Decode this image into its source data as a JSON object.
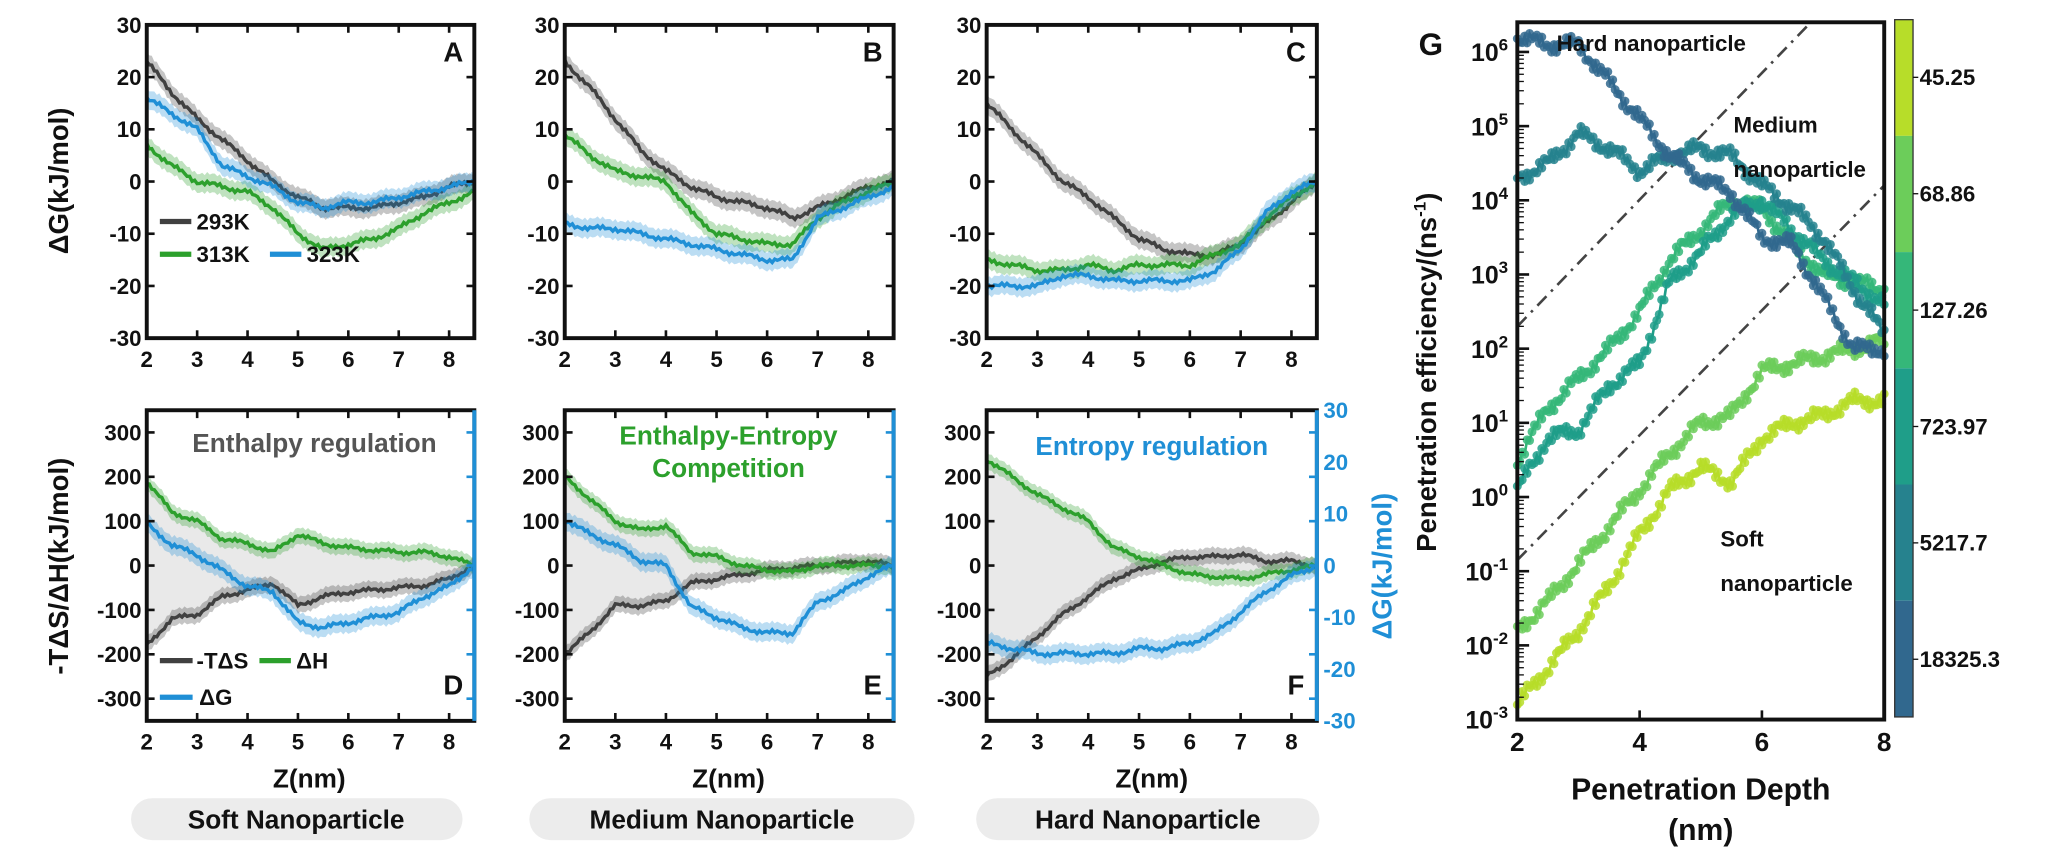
{
  "chart_data": [
    {
      "panel": "A",
      "type": "line",
      "letter": "A",
      "ylabel": "ΔG(kJ/mol)",
      "xlim": [
        2,
        8.5
      ],
      "ylim": [
        -30,
        30
      ],
      "xticks": [
        2,
        3,
        4,
        5,
        6,
        7,
        8
      ],
      "yticks": [
        30,
        20,
        10,
        0,
        -10,
        -20,
        -30
      ],
      "x": [
        2,
        2.5,
        3,
        3.5,
        4,
        4.5,
        5,
        5.5,
        6,
        6.5,
        7,
        7.5,
        8,
        8.5
      ],
      "series": [
        {
          "name": "293K",
          "color": "#404040",
          "values": [
            23,
            17,
            12,
            8,
            4,
            0,
            -3,
            -5,
            -5,
            -5,
            -4,
            -3,
            -1,
            0
          ]
        },
        {
          "name": "313K",
          "color": "#2ca02c",
          "values": [
            7,
            3,
            0,
            -1,
            -2,
            -5,
            -10,
            -13,
            -12,
            -11,
            -9,
            -6,
            -4,
            -2
          ]
        },
        {
          "name": "323K",
          "color": "#1f8fd6",
          "values": [
            16,
            13,
            10,
            3,
            1,
            -1,
            -4,
            -5,
            -4,
            -4,
            -3,
            -2,
            -1,
            0
          ]
        }
      ]
    },
    {
      "panel": "B",
      "type": "line",
      "letter": "B",
      "xlim": [
        2,
        8.5
      ],
      "ylim": [
        -30,
        30
      ],
      "xticks": [
        2,
        3,
        4,
        5,
        6,
        7,
        8
      ],
      "yticks": [
        30,
        20,
        10,
        0,
        -10,
        -20,
        -30
      ],
      "x": [
        2,
        2.5,
        3,
        3.5,
        4,
        4.5,
        5,
        5.5,
        6,
        6.5,
        7,
        7.5,
        8,
        8.5
      ],
      "series": [
        {
          "color": "#404040",
          "values": [
            23,
            18,
            12,
            6,
            2,
            -1,
            -3,
            -4,
            -5,
            -7,
            -5,
            -3,
            -1,
            0
          ]
        },
        {
          "color": "#2ca02c",
          "values": [
            9,
            5,
            2,
            1,
            0,
            -6,
            -10,
            -11,
            -12,
            -12,
            -7,
            -4,
            -2,
            0
          ]
        },
        {
          "color": "#1f8fd6",
          "values": [
            -8,
            -9,
            -9,
            -10,
            -11,
            -12,
            -13,
            -14,
            -15,
            -15,
            -7,
            -5,
            -3,
            -1
          ]
        }
      ]
    },
    {
      "panel": "C",
      "type": "line",
      "letter": "C",
      "xlim": [
        2,
        8.5
      ],
      "ylim": [
        -30,
        30
      ],
      "xticks": [
        2,
        3,
        4,
        5,
        6,
        7,
        8
      ],
      "yticks": [
        30,
        20,
        10,
        0,
        -10,
        -20,
        -30
      ],
      "x": [
        2,
        2.5,
        3,
        3.5,
        4,
        4.5,
        5,
        5.5,
        6,
        6.5,
        7,
        7.5,
        8,
        8.5
      ],
      "series": [
        {
          "color": "#404040",
          "values": [
            15,
            10,
            5,
            0,
            -3,
            -7,
            -11,
            -13,
            -14,
            -14,
            -12,
            -8,
            -4,
            0
          ]
        },
        {
          "color": "#2ca02c",
          "values": [
            -15,
            -16,
            -17,
            -17,
            -16,
            -17,
            -16,
            -16,
            -16,
            -14,
            -12,
            -7,
            -3,
            0
          ]
        },
        {
          "color": "#1f8fd6",
          "values": [
            -20,
            -20,
            -20,
            -18,
            -18,
            -19,
            -19,
            -19,
            -19,
            -17,
            -13,
            -6,
            -2,
            0
          ]
        }
      ]
    },
    {
      "panel": "D",
      "type": "line",
      "letter": "D",
      "ylabel": "-TΔS/ΔH(kJ/mol)",
      "xlabel": "Z(nm)",
      "annotation": "Enthalpy regulation",
      "annotation_color": "#555555",
      "xlim": [
        2,
        8.5
      ],
      "ylim": [
        -350,
        350
      ],
      "y2lim": [
        -30,
        30
      ],
      "xticks": [
        2,
        3,
        4,
        5,
        6,
        7,
        8
      ],
      "yticks": [
        300,
        200,
        100,
        0,
        -100,
        -200,
        -300
      ],
      "x": [
        2,
        2.5,
        3,
        3.5,
        4,
        4.5,
        5,
        5.5,
        6,
        6.5,
        7,
        7.5,
        8,
        8.5
      ],
      "series": [
        {
          "name": "-TΔS",
          "color": "#404040",
          "values": [
            -180,
            -120,
            -110,
            -70,
            -55,
            -40,
            -90,
            -70,
            -60,
            -55,
            -50,
            -45,
            -30,
            0
          ]
        },
        {
          "name": "ΔH",
          "color": "#2ca02c",
          "values": [
            190,
            120,
            100,
            60,
            50,
            30,
            70,
            50,
            40,
            35,
            30,
            30,
            20,
            0
          ]
        },
        {
          "name": "ΔG",
          "color": "#1f8fd6",
          "axis": "right",
          "values": [
            8,
            4,
            2,
            -1,
            -4,
            -5,
            -11,
            -12,
            -11,
            -10,
            -9,
            -6,
            -4,
            0
          ]
        }
      ]
    },
    {
      "panel": "E",
      "type": "line",
      "letter": "E",
      "xlabel": "Z(nm)",
      "annotation": [
        "Enthalpy-Entropy",
        "Competition"
      ],
      "annotation_color": "#2ca02c",
      "xlim": [
        2,
        8.5
      ],
      "ylim": [
        -350,
        350
      ],
      "y2lim": [
        -30,
        30
      ],
      "xticks": [
        2,
        3,
        4,
        5,
        6,
        7,
        8
      ],
      "yticks": [
        300,
        200,
        100,
        0,
        -100,
        -200,
        -300
      ],
      "x": [
        2,
        2.5,
        3,
        3.5,
        4,
        4.5,
        5,
        5.5,
        6,
        6.5,
        7,
        7.5,
        8,
        8.5
      ],
      "series": [
        {
          "color": "#404040",
          "values": [
            -200,
            -150,
            -90,
            -90,
            -80,
            -40,
            -30,
            -20,
            -10,
            -5,
            0,
            5,
            10,
            0
          ]
        },
        {
          "color": "#2ca02c",
          "values": [
            200,
            150,
            100,
            80,
            90,
            30,
            20,
            0,
            -10,
            -15,
            0,
            0,
            0,
            0
          ]
        },
        {
          "color": "#1f8fd6",
          "axis": "right",
          "values": [
            9,
            6,
            4,
            1,
            0,
            -8,
            -10,
            -12,
            -13,
            -13,
            -7,
            -5,
            -2,
            0
          ]
        }
      ]
    },
    {
      "panel": "F",
      "type": "line",
      "letter": "F",
      "xlabel": "Z(nm)",
      "annotation": "Entropy regulation",
      "annotation_color": "#1f8fd6",
      "y2label": "ΔG(kJ/mol)",
      "xlim": [
        2,
        8.5
      ],
      "ylim": [
        -350,
        350
      ],
      "y2lim": [
        -30,
        30
      ],
      "xticks": [
        2,
        3,
        4,
        5,
        6,
        7,
        8
      ],
      "yticks": [
        300,
        200,
        100,
        0,
        -100,
        -200,
        -300
      ],
      "y2ticks": [
        30,
        20,
        10,
        0,
        -10,
        -20,
        -30
      ],
      "x": [
        2,
        2.5,
        3,
        3.5,
        4,
        4.5,
        5,
        5.5,
        6,
        6.5,
        7,
        7.5,
        8,
        8.5
      ],
      "series": [
        {
          "color": "#404040",
          "values": [
            -250,
            -210,
            -160,
            -110,
            -70,
            -30,
            -10,
            10,
            20,
            20,
            25,
            10,
            10,
            0
          ]
        },
        {
          "color": "#2ca02c",
          "values": [
            240,
            200,
            160,
            130,
            100,
            40,
            20,
            0,
            -20,
            -25,
            -30,
            -20,
            -10,
            0
          ]
        },
        {
          "color": "#1f8fd6",
          "axis": "right",
          "values": [
            -15,
            -16,
            -17,
            -17,
            -17,
            -17,
            -16,
            -16,
            -15,
            -13,
            -9,
            -5,
            -2,
            0
          ]
        }
      ]
    },
    {
      "panel": "G",
      "type": "scatter",
      "letter": "G",
      "yscale": "log",
      "ylabel": "Penetration efficiency/(ns",
      "ylabel_sup": "-1",
      "ylabel_end": ")",
      "xlabel": "Penetration Depth",
      "xlabel2": "(nm)",
      "xlim": [
        2,
        8
      ],
      "ylim_log10": [
        -3,
        6.4
      ],
      "xticks": [
        2,
        4,
        6,
        8
      ],
      "yticks_log10": [
        6,
        5,
        4,
        3,
        2,
        1,
        0,
        -1,
        -2,
        -3
      ],
      "annotations": [
        "Hard nanoparticle",
        "Medium",
        "nanoparticle",
        "Soft",
        "nanoparticle"
      ],
      "x": [
        2,
        2.5,
        3,
        3.5,
        4,
        4.5,
        5,
        5.5,
        6,
        6.5,
        7,
        7.5,
        8
      ],
      "series": [
        {
          "color": "#31688e",
          "log10_values": [
            6.2,
            6.1,
            6.1,
            5.6,
            5.1,
            4.6,
            4.3,
            4.1,
            3.5,
            3.4,
            2.7,
            2.0,
            2.0
          ]
        },
        {
          "color": "#26828e",
          "log10_values": [
            4.3,
            4.5,
            4.9,
            4.7,
            4.4,
            4.6,
            4.7,
            4.6,
            4.2,
            3.9,
            3.5,
            2.8,
            2.2
          ]
        },
        {
          "color": "#1f9e89",
          "log10_values": [
            0.1,
            0.8,
            0.9,
            1.5,
            1.8,
            2.9,
            3.3,
            3.8,
            4.0,
            3.6,
            3.2,
            2.9,
            2.6
          ]
        },
        {
          "color": "#35b779",
          "log10_values": [
            0.5,
            1.2,
            1.6,
            2.0,
            2.5,
            3.2,
            3.6,
            4.0,
            3.9,
            3.4,
            3.0,
            2.9,
            2.8
          ]
        },
        {
          "color": "#6ccd5a",
          "log10_values": [
            -1.8,
            -1.4,
            -0.9,
            -0.4,
            0.1,
            0.6,
            1.0,
            1.1,
            1.7,
            1.8,
            1.9,
            2.0,
            2.1
          ]
        },
        {
          "color": "#b7dd29",
          "log10_values": [
            -2.8,
            -2.3,
            -1.8,
            -1.2,
            -0.5,
            0.1,
            0.4,
            0.2,
            0.8,
            1.0,
            1.1,
            1.3,
            1.3
          ]
        }
      ],
      "reference_lines": [
        {
          "style": "dash-dot",
          "from": [
            2,
            2.3
          ],
          "to": [
            6.8,
            6.4
          ]
        },
        {
          "style": "dash-dot",
          "from": [
            2,
            -0.85
          ],
          "to": [
            8,
            4.2
          ]
        }
      ],
      "colorbar": {
        "colors": [
          "#b7dd29",
          "#6ccd5a",
          "#35b779",
          "#1f9e89",
          "#26828e",
          "#31688e"
        ],
        "labels": [
          "45.25",
          "68.86",
          "127.26",
          "723.97",
          "5217.7",
          "18325.3"
        ]
      }
    }
  ],
  "categories": {
    "soft": "Soft Nanoparticle",
    "medium": "Medium Nanoparticle",
    "hard": "Hard Nanoparticle"
  }
}
